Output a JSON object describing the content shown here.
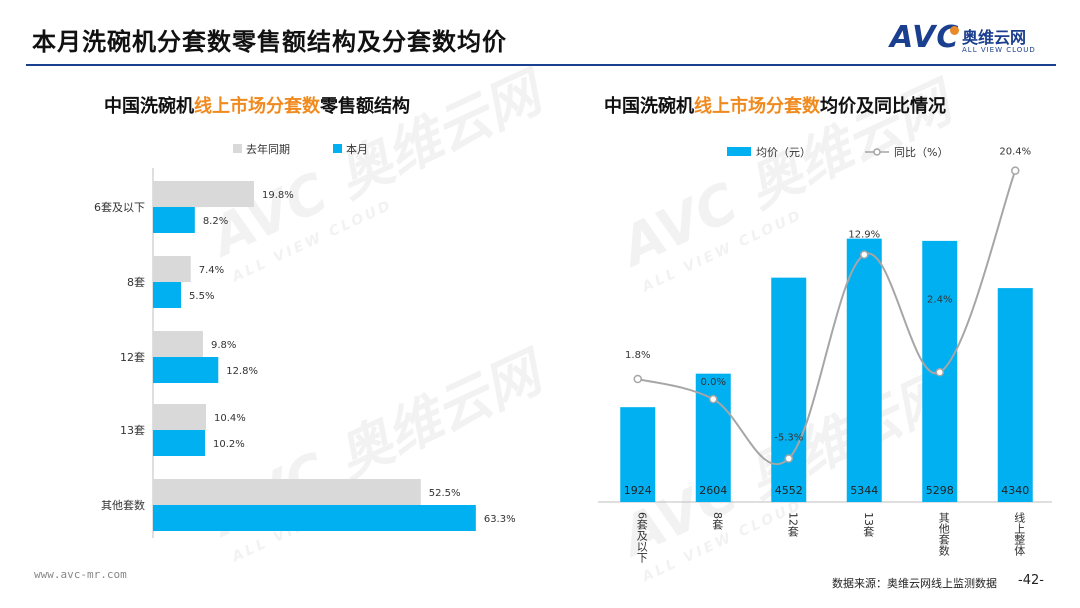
{
  "header": {
    "title": "本月洗碗机分套数零售额结构及分套数均价",
    "logo_text": "AVC",
    "logo_cn": "奥维云网",
    "logo_en": "ALL VIEW CLOUD"
  },
  "watermark": {
    "cn": "奥维云网",
    "en": "ALL VIEW CLOUD",
    "mark": "AVC"
  },
  "left_chart": {
    "title_a": "中国洗碗机",
    "title_b": "线上市场分套数",
    "title_c": "零售额结构"
  },
  "right_chart": {
    "title_a": "中国洗碗机",
    "title_b": "线上市场分套数",
    "title_c": "均价及同比情况"
  },
  "chart_data": [
    {
      "type": "bar",
      "orientation": "horizontal",
      "categories": [
        "6套及以下",
        "8套",
        "12套",
        "13套",
        "其他套数"
      ],
      "series": [
        {
          "name": "去年同期",
          "values": [
            19.8,
            7.4,
            9.8,
            10.4,
            52.5
          ],
          "labels": [
            "19.8%",
            "7.4%",
            "9.8%",
            "10.4%",
            "52.5%"
          ],
          "color": "#d9d9d9"
        },
        {
          "name": "本月",
          "values": [
            8.2,
            5.5,
            12.8,
            10.2,
            63.3
          ],
          "labels": [
            "8.2%",
            "5.5%",
            "12.8%",
            "10.2%",
            "63.3%"
          ],
          "color": "#00b0f0"
        }
      ],
      "xlim": [
        0,
        100
      ],
      "legend": "top"
    },
    {
      "type": "bar+line",
      "categories": [
        "6套及以下",
        "8套",
        "12套",
        "13套",
        "其他套数",
        "线上整体"
      ],
      "series": [
        {
          "name": "均价（元）",
          "kind": "bar",
          "values": [
            1924,
            2604,
            4552,
            5344,
            5298,
            4340
          ],
          "labels": [
            "1924",
            "2604",
            "4552",
            "5344",
            "5298",
            "4340"
          ],
          "color": "#00b0f0"
        },
        {
          "name": "同比（%）",
          "kind": "line",
          "values": [
            1.8,
            0.0,
            -5.3,
            12.9,
            2.4,
            20.4
          ],
          "labels": [
            "1.8%",
            "0.0%",
            "-5.3%",
            "12.9%",
            "2.4%",
            "20.4%"
          ],
          "color": "#a6a6a6"
        }
      ],
      "ylim_bar": [
        0,
        5600
      ],
      "ylim_line": [
        -8,
        40
      ],
      "legend": "top"
    }
  ],
  "footer": {
    "url": "www.avc-mr.com",
    "source": "数据来源：奥维云网线上监测数据",
    "page": "-42-"
  }
}
